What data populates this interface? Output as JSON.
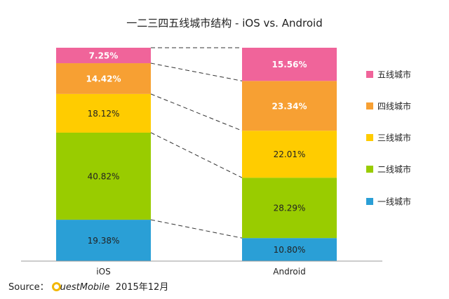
{
  "chart_data": {
    "type": "bar",
    "stacked": true,
    "title": "一二三四五线城市结构 - iOS vs. Android",
    "categories": [
      "iOS",
      "Android"
    ],
    "series": [
      {
        "name": "一线城市",
        "color": "#2a9fd6",
        "values": [
          19.38,
          10.8
        ],
        "labels": [
          "19.38%",
          "10.80%"
        ]
      },
      {
        "name": "二线城市",
        "color": "#99cc00",
        "values": [
          40.82,
          28.29
        ],
        "labels": [
          "40.82%",
          "28.29%"
        ]
      },
      {
        "name": "三线城市",
        "color": "#ffcc00",
        "values": [
          18.12,
          22.01
        ],
        "labels": [
          "18.12%",
          "22.01%"
        ]
      },
      {
        "name": "四线城市",
        "color": "#f7a033",
        "values": [
          14.42,
          23.34
        ],
        "labels": [
          "14.42%",
          "23.34%"
        ]
      },
      {
        "name": "五线城市",
        "color": "#f0649a",
        "values": [
          7.25,
          15.56
        ],
        "labels": [
          "7.25%",
          "15.56%"
        ]
      }
    ],
    "ylim": [
      0,
      100
    ],
    "legend_position": "right",
    "grid": false,
    "connector_lines": true
  },
  "source": {
    "prefix": "Source：",
    "brand": "uestMobile",
    "date": "2015年12月"
  }
}
